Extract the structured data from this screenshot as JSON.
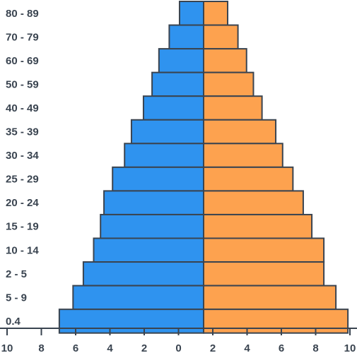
{
  "chart_data": {
    "type": "bar",
    "orientation": "horizontal-pyramid",
    "categories": [
      "80 - 89",
      "70 - 79",
      "60 - 69",
      "50 - 59",
      "40 - 49",
      "35 - 39",
      "30 - 34",
      "25 - 29",
      "20 - 24",
      "15 - 19",
      "10 - 14",
      "2 - 5",
      "5 - 9",
      "0.4"
    ],
    "series": [
      {
        "values": [
          1.4,
          2.0,
          2.6,
          3.0,
          3.5,
          4.2,
          4.6,
          5.3,
          5.8,
          6.0,
          6.4,
          7.0,
          7.6,
          8.4
        ],
        "color": "#2f93ef"
      },
      {
        "values": [
          1.4,
          2.0,
          2.5,
          2.9,
          3.4,
          4.2,
          4.6,
          5.2,
          5.8,
          6.3,
          7.0,
          7.0,
          7.7,
          8.4
        ],
        "color": "#fda24f"
      }
    ],
    "x_tick_labels": [
      "10",
      "8",
      "6",
      "4",
      "2",
      "0",
      "2",
      "4",
      "6",
      "8",
      "10"
    ],
    "stroke_color": "#3a4450"
  }
}
